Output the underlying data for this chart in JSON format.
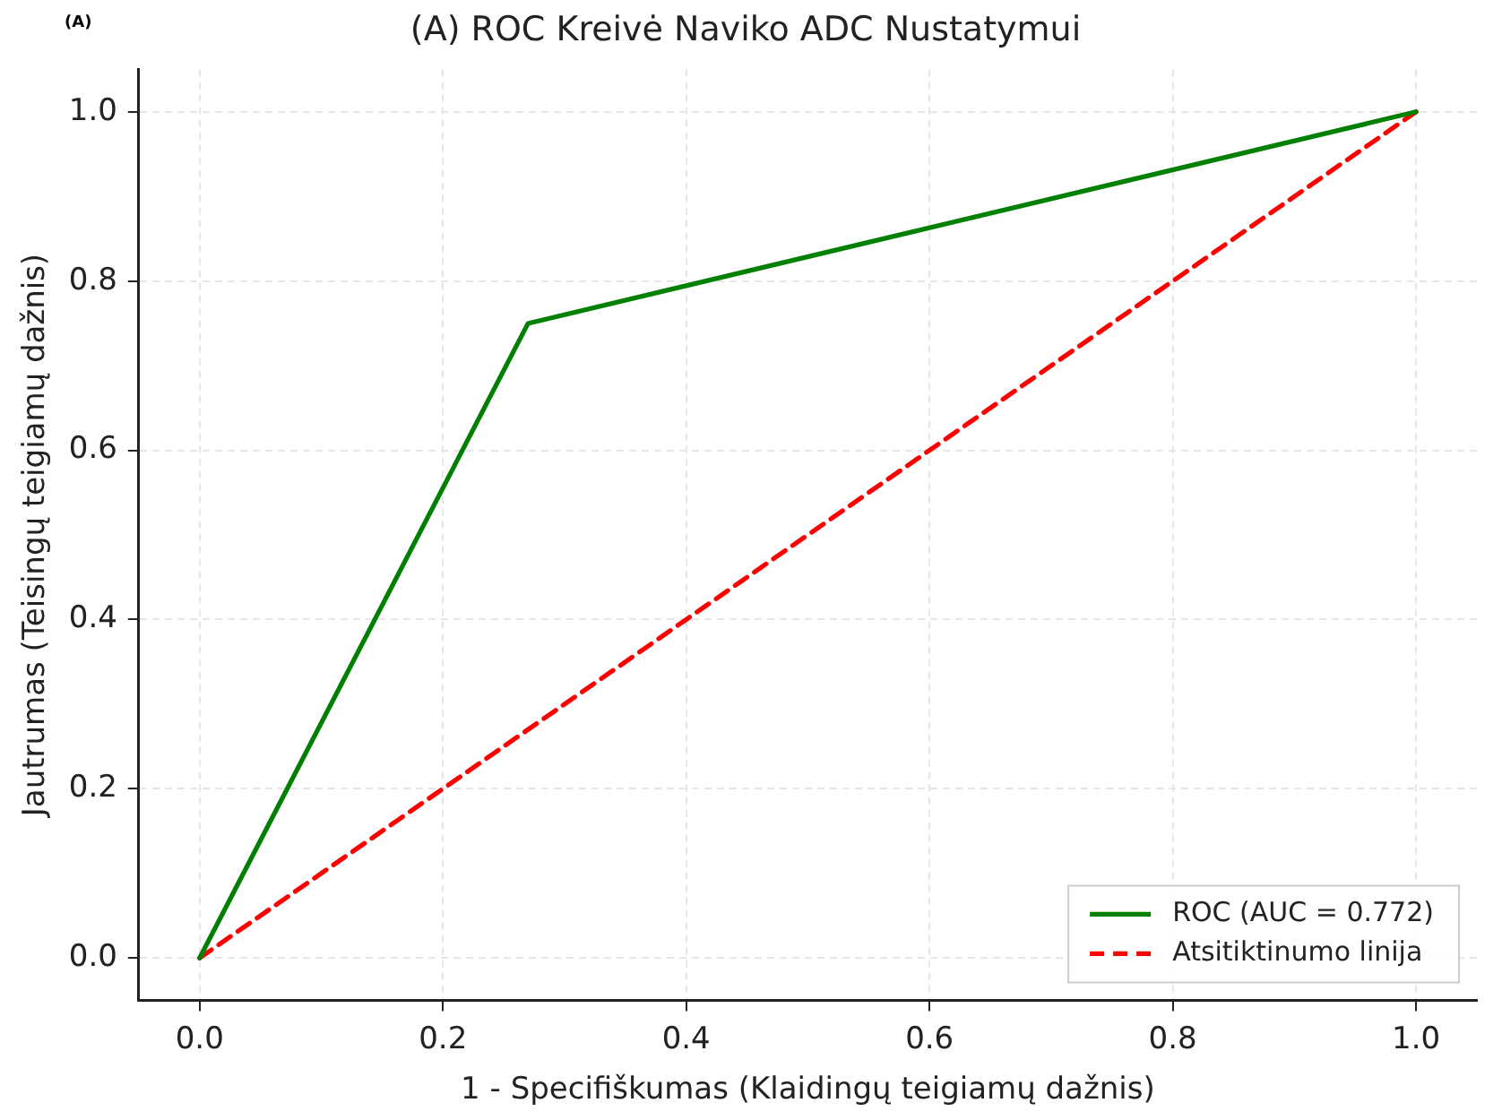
{
  "chart_data": {
    "type": "line",
    "title": "(A) ROC Kreivė Naviko ADC Nustatymui",
    "xlabel": "1 - Specifiškumas (Klaidingų teigiamų dažnis)",
    "ylabel": "Jautrumas (Teisingų teigiamų dažnis)",
    "annotations": [
      "(A)"
    ],
    "series": [
      {
        "name": "ROC (AUC = 0.772)",
        "color": "#008000",
        "x": [
          0,
          0.27,
          1
        ],
        "values": [
          0,
          0.75,
          1
        ],
        "line_style": "solid"
      },
      {
        "name": "Atsitiktinumo linija",
        "color": "#ff0000",
        "x": [
          0,
          1
        ],
        "values": [
          0,
          1
        ],
        "line_style": "dashed"
      }
    ],
    "xlim": [
      -0.05,
      1.05
    ],
    "ylim": [
      -0.05,
      1.05
    ],
    "xticks": [
      {
        "value": 0,
        "label": "0.0"
      },
      {
        "value": 0.2,
        "label": "0.2"
      },
      {
        "value": 0.4,
        "label": "0.4"
      },
      {
        "value": 0.6,
        "label": "0.6"
      },
      {
        "value": 0.8,
        "label": "0.8"
      },
      {
        "value": 1,
        "label": "1.0"
      }
    ],
    "yticks": [
      {
        "value": 0,
        "label": "0.0"
      },
      {
        "value": 0.2,
        "label": "0.2"
      },
      {
        "value": 0.4,
        "label": "0.4"
      },
      {
        "value": 0.6,
        "label": "0.6"
      },
      {
        "value": 0.8,
        "label": "0.8"
      },
      {
        "value": 1,
        "label": "1.0"
      }
    ],
    "grid": true,
    "legend": "bottom right",
    "marker": "none"
  }
}
